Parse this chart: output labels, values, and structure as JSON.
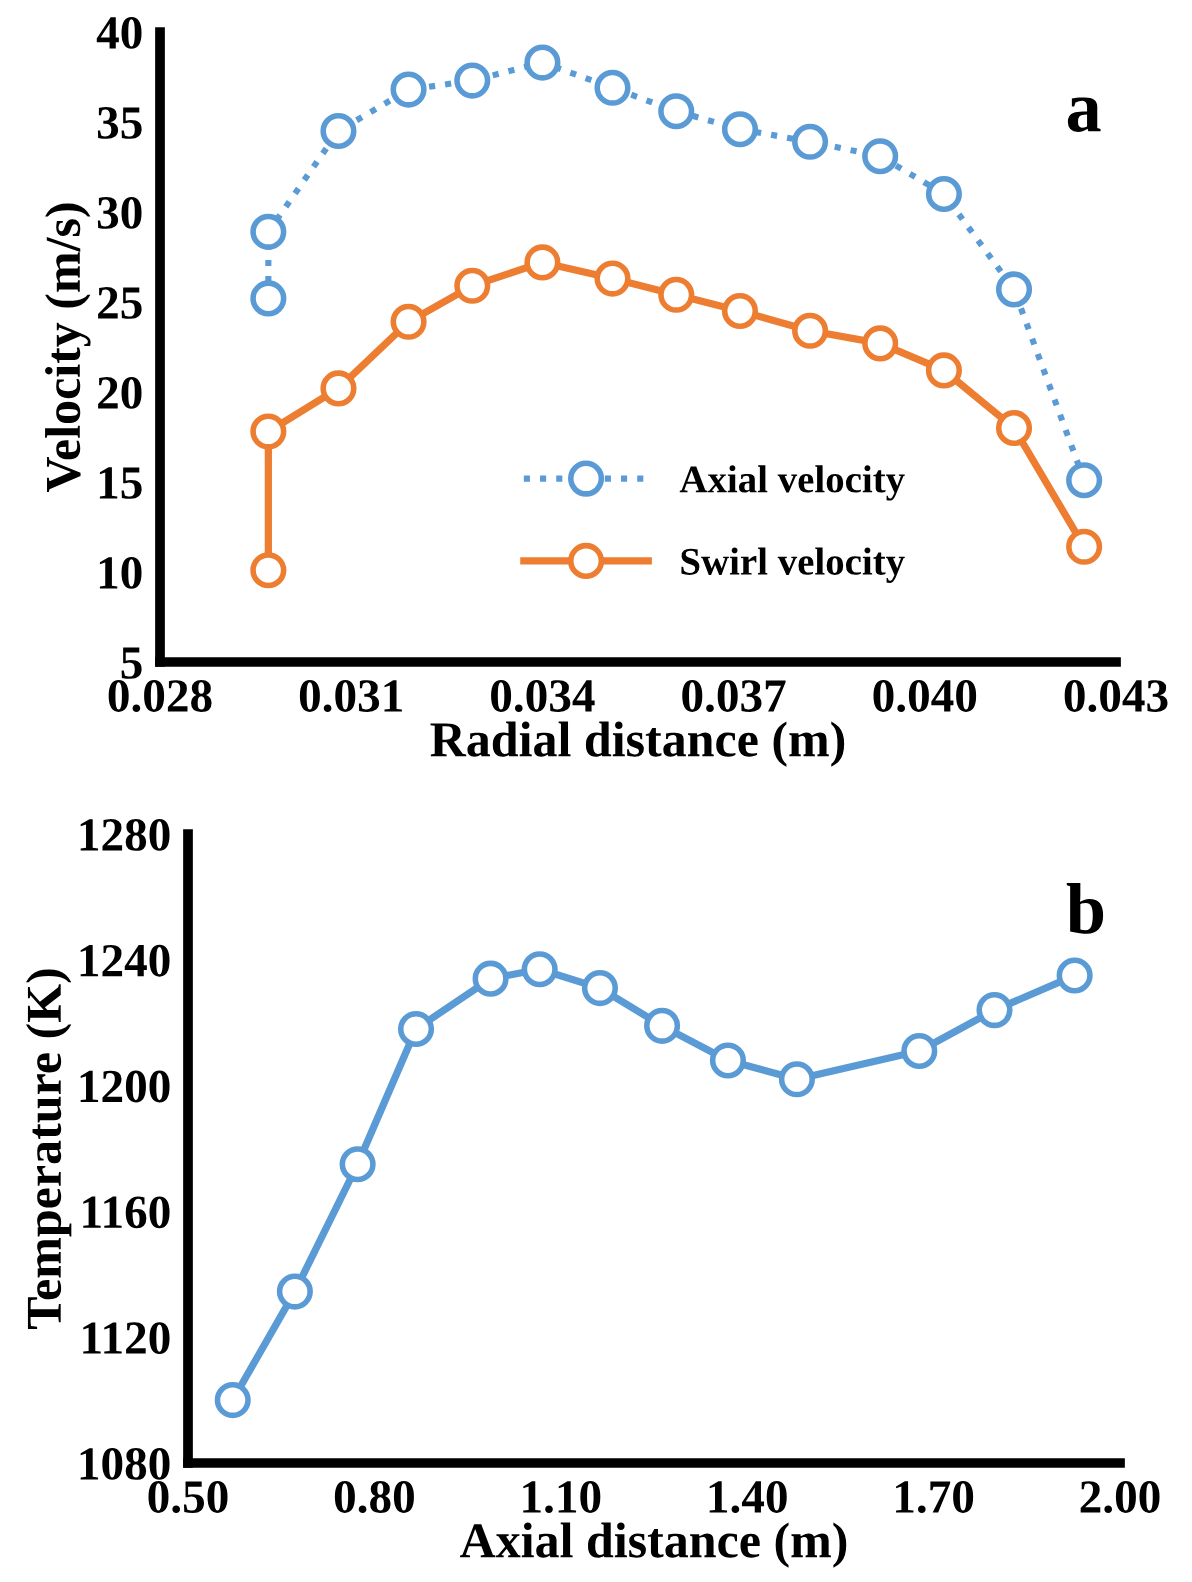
{
  "chart_data": [
    {
      "type": "line",
      "xlabel": "Radial distance (m)",
      "ylabel": "Velocity (m/s)",
      "annotations": [
        "a"
      ],
      "xlim": [
        0.028,
        0.043
      ],
      "xticks": [
        {
          "value": 0.028,
          "label": "0.028"
        },
        {
          "value": 0.031,
          "label": "0.031"
        },
        {
          "value": 0.034,
          "label": "0.034"
        },
        {
          "value": 0.037,
          "label": "0.037"
        },
        {
          "value": 0.04,
          "label": "0.040"
        },
        {
          "value": 0.043,
          "label": "0.043"
        }
      ],
      "ylim": [
        5,
        40
      ],
      "yticks": [
        5,
        10,
        15,
        20,
        25,
        30,
        35,
        40
      ],
      "grid": false,
      "legend": "bottom",
      "marker": "circle",
      "series": [
        {
          "name": "Axial velocity",
          "color": "#5b9bd5",
          "line_style": "dotted",
          "x": [
            0.0297,
            0.0297,
            0.0308,
            0.0319,
            0.0329,
            0.034,
            0.0351,
            0.0361,
            0.0371,
            0.0382,
            0.0393,
            0.0403,
            0.0414,
            0.0425
          ],
          "values": [
            25.2,
            28.9,
            34.5,
            36.8,
            37.3,
            38.3,
            36.9,
            35.6,
            34.6,
            33.9,
            33.1,
            31.0,
            25.7,
            15.1
          ]
        },
        {
          "name": "Swirl velocity",
          "color": "#ed7d31",
          "line_style": "solid",
          "x": [
            0.0297,
            0.0297,
            0.0308,
            0.0319,
            0.0329,
            0.034,
            0.0351,
            0.0361,
            0.0371,
            0.0382,
            0.0393,
            0.0403,
            0.0414,
            0.0425
          ],
          "values": [
            10.1,
            17.8,
            20.2,
            23.9,
            25.9,
            27.2,
            26.3,
            25.4,
            24.5,
            23.4,
            22.7,
            21.2,
            18.0,
            11.4
          ]
        }
      ]
    },
    {
      "type": "line",
      "xlabel": "Axial distance (m)",
      "ylabel": "Temperature (K)",
      "annotations": [
        "b"
      ],
      "xlim": [
        0.5,
        2.0
      ],
      "xticks": [
        {
          "value": 0.5,
          "label": "0.50"
        },
        {
          "value": 0.8,
          "label": "0.80"
        },
        {
          "value": 1.1,
          "label": "1.10"
        },
        {
          "value": 1.4,
          "label": "1.40"
        },
        {
          "value": 1.7,
          "label": "1.70"
        },
        {
          "value": 2.0,
          "label": "2.00"
        }
      ],
      "ylim": [
        1080,
        1280
      ],
      "yticks": [
        1080,
        1120,
        1160,
        1200,
        1240,
        1280
      ],
      "grid": false,
      "legend": false,
      "marker": "circle",
      "line_style": "solid",
      "series": [
        {
          "color": "#5b9bd5",
          "x": [
            0.572,
            0.672,
            0.773,
            0.867,
            0.987,
            1.066,
            1.163,
            1.263,
            1.369,
            1.48,
            1.677,
            1.798,
            1.927
          ],
          "values": [
            1100,
            1134.5,
            1175,
            1218,
            1234,
            1237,
            1231,
            1219,
            1208,
            1202,
            1211,
            1224,
            1235
          ]
        }
      ]
    }
  ]
}
